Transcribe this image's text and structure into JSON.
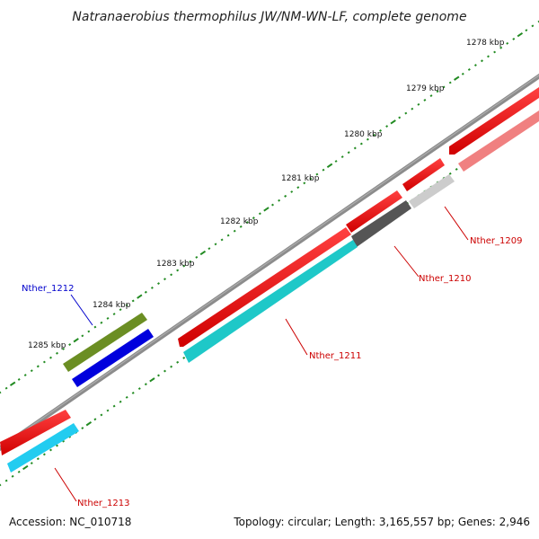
{
  "title": "Natranaerobius thermophilus JW/NM-WN-LF, complete genome",
  "footer": {
    "accession": "Accession: NC_010718",
    "summary": "Topology: circular; Length: 3,165,557 bp; Genes: 2,946"
  },
  "kbp_labels": [
    "1278 kbp",
    "1279 kbp",
    "1280 kbp",
    "1281 kbp",
    "1282 kbp",
    "1283 kbp",
    "1284 kbp",
    "1285 kbp"
  ],
  "gene_labels": [
    {
      "id": "Nther_1209",
      "color": "#cc0000"
    },
    {
      "id": "Nther_1210",
      "color": "#cc0000"
    },
    {
      "id": "Nther_1211",
      "color": "#cc0000"
    },
    {
      "id": "Nther_1212",
      "color": "#0000cc"
    },
    {
      "id": "Nther_1213",
      "color": "#cc0000"
    }
  ],
  "colors": {
    "backbone": "#8c8c8c",
    "cds_forward": "#ff0000",
    "cds_pink": "#f08080",
    "gene_darkgray": "#555555",
    "gene_lightgray": "#cccccc",
    "gene_teal": "#1ec8c8",
    "gene_cyan": "#22ccf0",
    "gene_olive": "#6b8e23",
    "gene_blue": "#0000dd",
    "tick": "#228b22"
  }
}
